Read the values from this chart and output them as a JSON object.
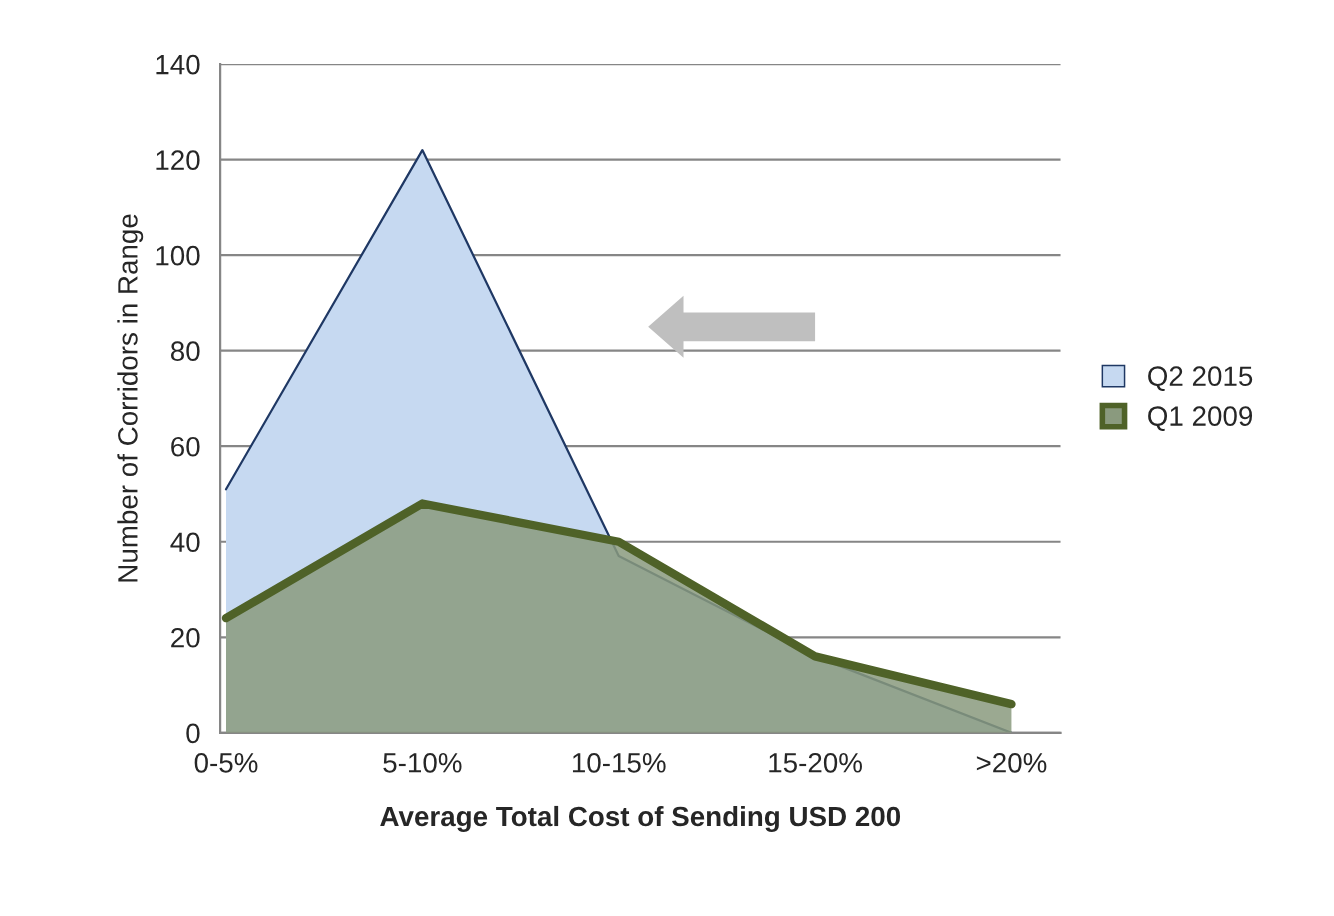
{
  "chart_data": {
    "type": "area",
    "xlabel": "Average Total Cost of Sending USD 200",
    "ylabel": "Number of Corridors in Range",
    "categories": [
      "0-5%",
      "5-10%",
      "10-15%",
      "15-20%",
      ">20%"
    ],
    "series": [
      {
        "name": "Q2 2015",
        "color": "#c6d9f1",
        "values": [
          51,
          122,
          37,
          16,
          0
        ]
      },
      {
        "name": "Q1 2009",
        "color": "#8a9a7e",
        "values": [
          24,
          48,
          40,
          16,
          6
        ]
      }
    ],
    "ylim": [
      0,
      140
    ],
    "yticks": [
      0,
      20,
      40,
      60,
      80,
      100,
      120,
      140
    ],
    "grid": "y",
    "legend": "right"
  }
}
